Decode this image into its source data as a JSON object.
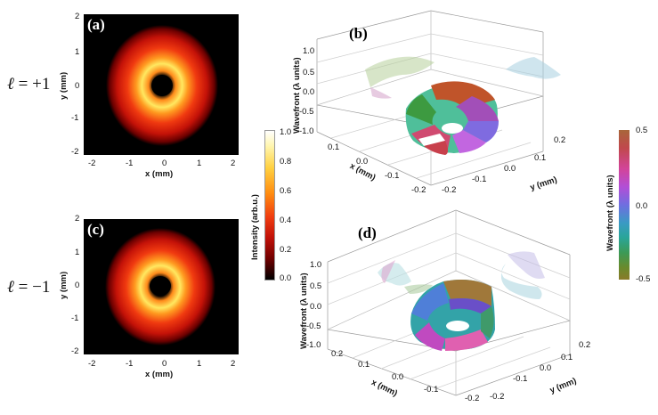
{
  "panels": {
    "a": {
      "label": "(a)"
    },
    "b": {
      "label": "(b)"
    },
    "c": {
      "label": "(c)"
    },
    "d": {
      "label": "(d)"
    }
  },
  "rows": {
    "top": {
      "label_symbol": "ℓ",
      "label_rest": " = +1"
    },
    "bottom": {
      "label_symbol": "ℓ",
      "label_rest": " = −1"
    }
  },
  "intensity_maps": {
    "x_ticks": [
      "-2",
      "-1",
      "0",
      "1",
      "2"
    ],
    "y_ticks": [
      "2",
      "1",
      "0",
      "-1",
      "-2"
    ],
    "xlabel": "x (mm)",
    "ylabel_a": "y (mm)",
    "ylabel_c": "y (mm)"
  },
  "intensity_colorbar": {
    "label": "Intensity (arb.u.)",
    "ticks": [
      "1.0",
      "0.8",
      "0.6",
      "0.4",
      "0.2",
      "0.0"
    ]
  },
  "wavefront_colorbar": {
    "label": "Wavefront (λ units)",
    "ticks": [
      "0.5",
      "0.0",
      "-0.5"
    ],
    "colors": {
      "top": "#a8663a",
      "upper_mid": "#c93fa8",
      "mid": "#33a3a8",
      "low": "#8a8a2a"
    }
  },
  "wavefront_3d": {
    "zlabel": "Wavefront (λ units)",
    "z_ticks": [
      "1.0",
      "0.5",
      "0.0",
      "-0.5",
      "-1.0"
    ],
    "x_ticks_b": [
      "0.1",
      "0.0",
      "-0.1",
      "-0.2"
    ],
    "x_ticks_d": [
      "0.2",
      "0.1",
      "0.0",
      "-0.1",
      "-0.2"
    ],
    "y_ticks": [
      "-0.2",
      "-0.1",
      "0.0",
      "0.1",
      "0.2"
    ],
    "xlabel": "x (mm)",
    "ylabel": "y (mm)"
  }
}
